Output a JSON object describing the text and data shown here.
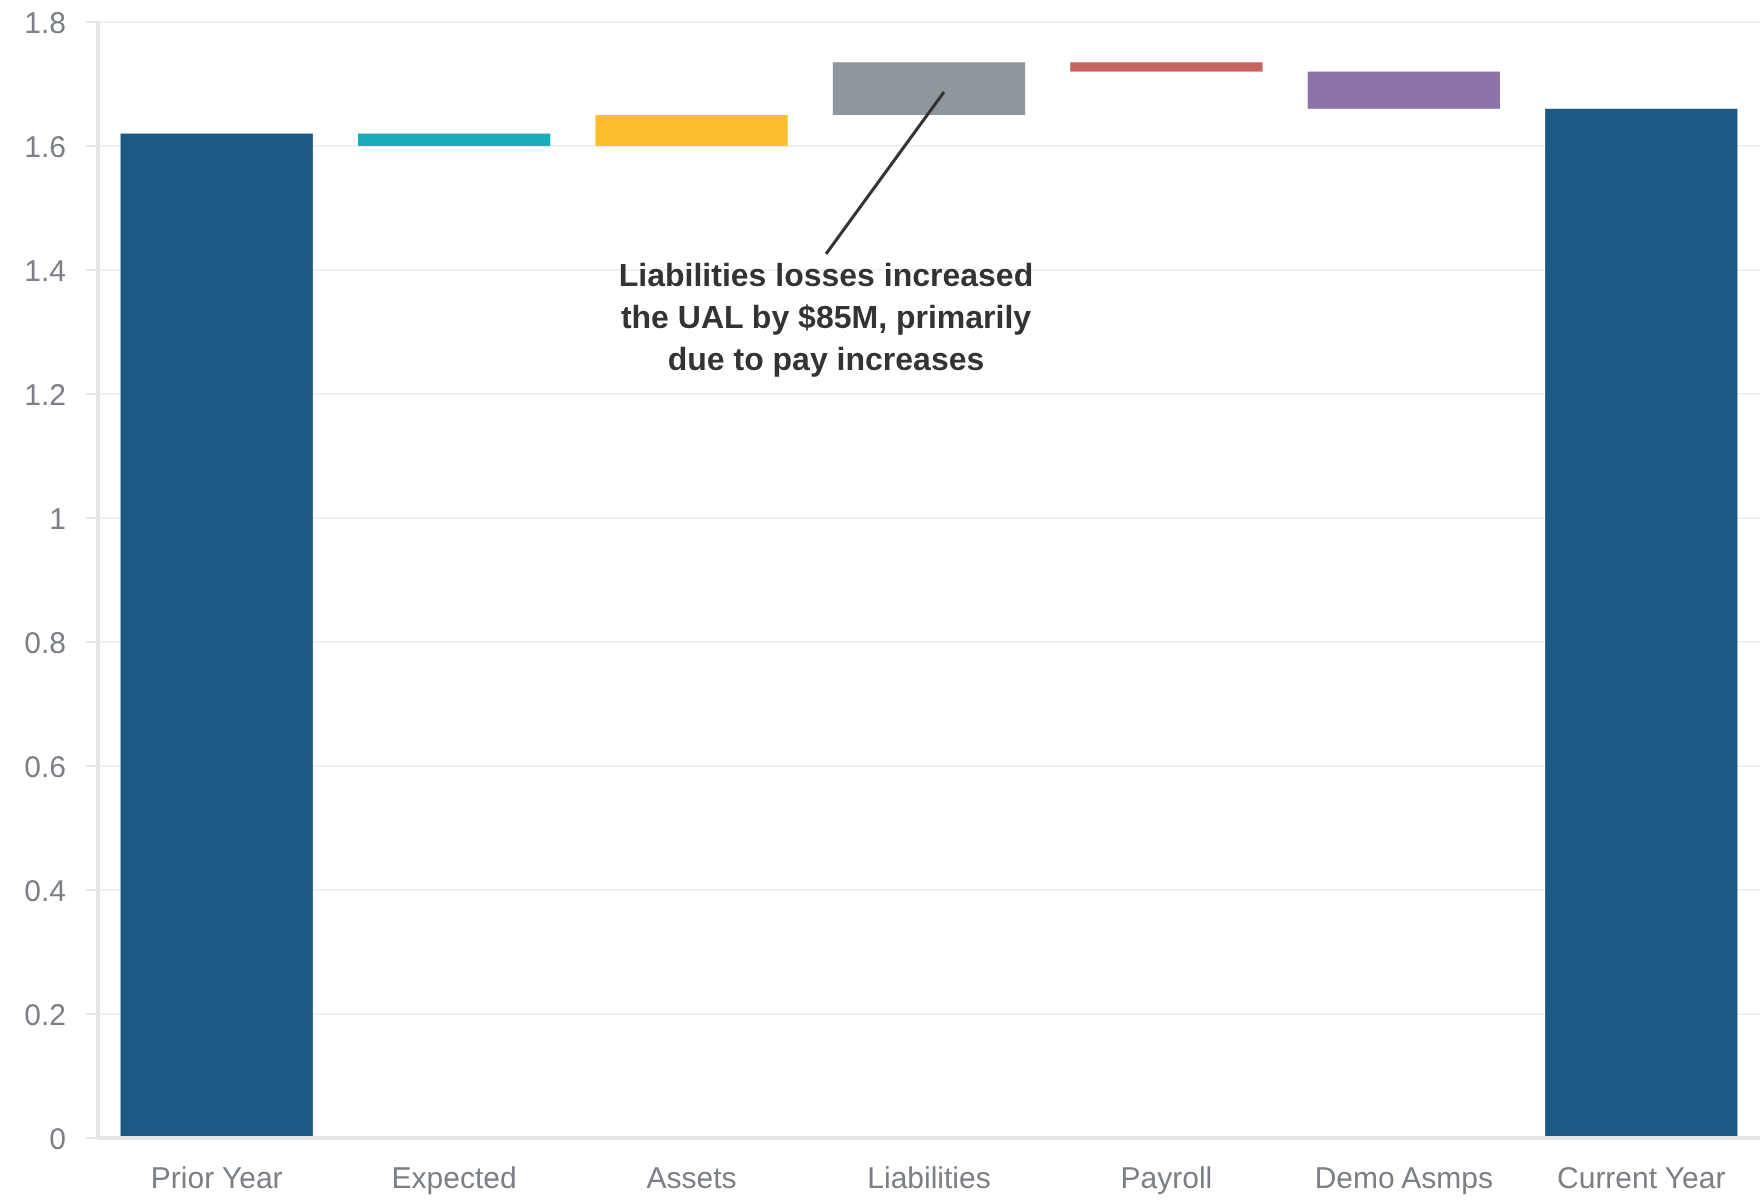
{
  "chart_data": {
    "type": "bar",
    "categories": [
      "Prior Year",
      "Expected",
      "Assets",
      "Liabilities",
      "Payroll",
      "Demo Asmps",
      "Current Year"
    ],
    "values": [
      1.62,
      0.02,
      0.05,
      0.085,
      0.015,
      0.06,
      1.66
    ],
    "base": [
      0,
      1.6,
      1.6,
      1.65,
      1.72,
      1.66,
      0
    ],
    "colors": [
      "#1d5a83",
      "#1aadbb",
      "#fbbe2d",
      "#8f969c",
      "#c8625e",
      "#8c73aa",
      "#1d5a83"
    ],
    "ylim": [
      0,
      1.8
    ],
    "yticks": [
      0,
      0.2,
      0.4,
      0.6,
      0.8,
      1,
      1.2,
      1.4,
      1.6,
      1.8
    ],
    "grid": "y",
    "annotations": [
      "Liabilities losses increased the UAL by $85M, primarily due to pay increases"
    ]
  }
}
